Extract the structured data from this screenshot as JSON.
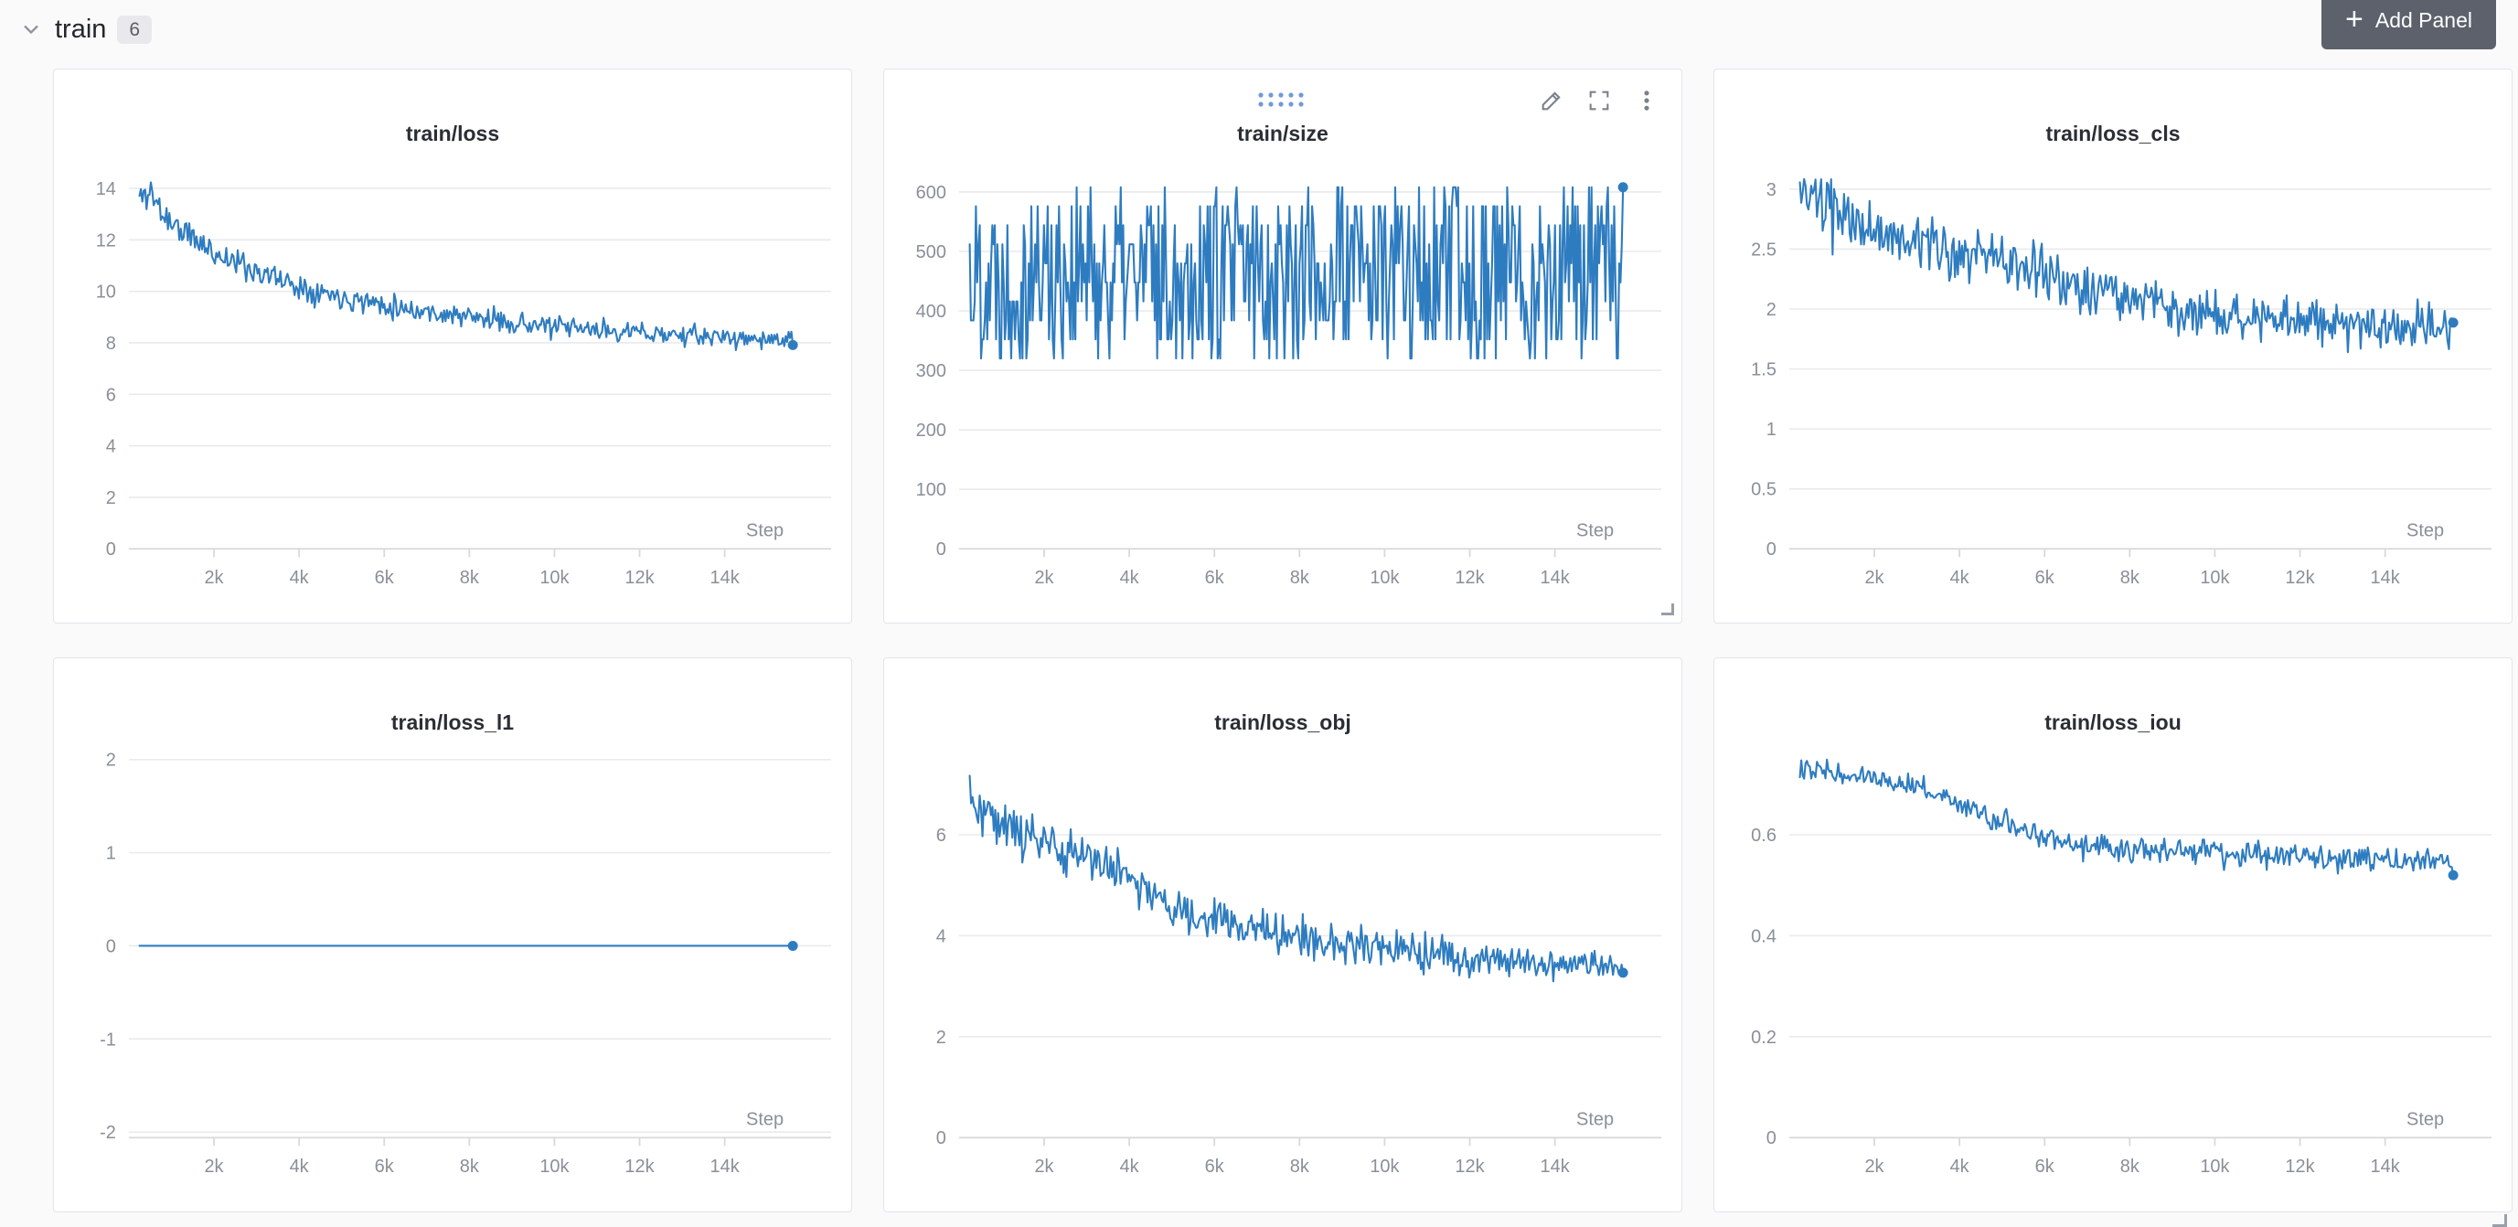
{
  "header": {
    "section_title": "train",
    "section_count": "6",
    "add_panel_label": "Add Panel",
    "plus_glyph": "+"
  },
  "style": {
    "line_color": "#2e7cc0",
    "grid_color": "#e9eaed",
    "axis_color": "#d7d9dd",
    "tick_label_color": "#8a8f98",
    "title_color": "#2b2e35",
    "dot_color": "#6f9bd6"
  },
  "axis": {
    "xlabel": "Step",
    "x_ticks": [
      [
        2000,
        "2k"
      ],
      [
        4000,
        "4k"
      ],
      [
        6000,
        "6k"
      ],
      [
        8000,
        "8k"
      ],
      [
        10000,
        "10k"
      ],
      [
        12000,
        "12k"
      ],
      [
        14000,
        "14k"
      ]
    ]
  },
  "chart_data": [
    {
      "title": "train/loss",
      "type": "line",
      "seed": 11,
      "points": 460,
      "x_start": 250,
      "x_end": 15600,
      "xmax": 16500,
      "ylim": [
        0,
        14.9
      ],
      "y_ticks": [
        0,
        2,
        4,
        6,
        8,
        10,
        12,
        14
      ],
      "trend": [
        [
          250,
          13.6
        ],
        [
          500,
          13.9
        ],
        [
          800,
          13.0
        ],
        [
          1200,
          12.4
        ],
        [
          2000,
          11.5
        ],
        [
          3000,
          10.8
        ],
        [
          4000,
          10.2
        ],
        [
          5000,
          9.8
        ],
        [
          6000,
          9.5
        ],
        [
          7000,
          9.2
        ],
        [
          8000,
          9.0
        ],
        [
          9000,
          8.8
        ],
        [
          10000,
          8.6
        ],
        [
          11000,
          8.5
        ],
        [
          12000,
          8.4
        ],
        [
          13000,
          8.3
        ],
        [
          14000,
          8.2
        ],
        [
          15600,
          8.1
        ]
      ],
      "noise": [
        [
          250,
          0.75
        ],
        [
          3000,
          0.55
        ],
        [
          8000,
          0.45
        ],
        [
          15600,
          0.38
        ]
      ],
      "end_dot": true,
      "hover_controls": false
    },
    {
      "title": "train/size",
      "type": "line",
      "seed": 22,
      "points": 520,
      "x_start": 250,
      "x_end": 15600,
      "xmax": 16500,
      "ylim": [
        0,
        645
      ],
      "y_ticks": [
        0,
        100,
        200,
        300,
        400,
        500,
        600
      ],
      "trend": [
        [
          250,
          464
        ],
        [
          15600,
          464
        ]
      ],
      "noise": 150,
      "noise_type": "uniform",
      "quantize": 32,
      "quantize_min": 320,
      "quantize_max": 608,
      "end_value": 608,
      "end_dot": true,
      "hover_controls": true
    },
    {
      "title": "train/loss_cls",
      "type": "line",
      "seed": 33,
      "points": 460,
      "x_start": 250,
      "x_end": 15600,
      "xmax": 16500,
      "ylim": [
        0,
        3.2
      ],
      "y_ticks": [
        0,
        0.5,
        1,
        1.5,
        2,
        2.5,
        3
      ],
      "trend": [
        [
          250,
          2.95
        ],
        [
          1000,
          2.8
        ],
        [
          2000,
          2.65
        ],
        [
          3000,
          2.55
        ],
        [
          4000,
          2.45
        ],
        [
          5000,
          2.38
        ],
        [
          6000,
          2.28
        ],
        [
          7000,
          2.18
        ],
        [
          8000,
          2.1
        ],
        [
          9000,
          2.0
        ],
        [
          10000,
          1.95
        ],
        [
          11000,
          1.92
        ],
        [
          12000,
          1.9
        ],
        [
          13000,
          1.88
        ],
        [
          14000,
          1.86
        ],
        [
          15600,
          1.85
        ]
      ],
      "noise": [
        [
          250,
          0.28
        ],
        [
          4000,
          0.24
        ],
        [
          15600,
          0.2
        ]
      ],
      "end_dot": true,
      "hover_controls": false
    },
    {
      "title": "train/loss_l1",
      "type": "line",
      "seed": 44,
      "points": 460,
      "x_start": 250,
      "x_end": 15600,
      "xmax": 16500,
      "ylim": [
        -2.06,
        2.06
      ],
      "y_ticks": [
        -2,
        -1,
        0,
        1,
        2
      ],
      "trend": [
        [
          250,
          0
        ],
        [
          15600,
          0
        ]
      ],
      "noise": 0,
      "end_dot": true,
      "hover_controls": false
    },
    {
      "title": "train/loss_obj",
      "type": "line",
      "seed": 55,
      "points": 460,
      "x_start": 250,
      "x_end": 15600,
      "xmax": 16500,
      "ylim": [
        0,
        7.6
      ],
      "y_ticks": [
        0,
        2,
        4,
        6
      ],
      "trend": [
        [
          250,
          6.9
        ],
        [
          700,
          6.4
        ],
        [
          1500,
          6.0
        ],
        [
          2500,
          5.7
        ],
        [
          3500,
          5.4
        ],
        [
          4200,
          5.1
        ],
        [
          5000,
          4.5
        ],
        [
          6000,
          4.3
        ],
        [
          7000,
          4.15
        ],
        [
          8000,
          3.95
        ],
        [
          9000,
          3.85
        ],
        [
          10000,
          3.75
        ],
        [
          11000,
          3.65
        ],
        [
          12000,
          3.55
        ],
        [
          13000,
          3.5
        ],
        [
          14000,
          3.45
        ],
        [
          15600,
          3.4
        ]
      ],
      "noise": [
        [
          250,
          0.55
        ],
        [
          5000,
          0.45
        ],
        [
          15600,
          0.3
        ]
      ],
      "end_dot": true,
      "hover_controls": false
    },
    {
      "title": "train/loss_iou",
      "type": "line",
      "seed": 66,
      "points": 460,
      "x_start": 250,
      "x_end": 15600,
      "xmax": 16500,
      "ylim": [
        0,
        0.76
      ],
      "y_ticks": [
        0,
        0.2,
        0.4,
        0.6
      ],
      "trend": [
        [
          250,
          0.735
        ],
        [
          1500,
          0.72
        ],
        [
          2500,
          0.705
        ],
        [
          3000,
          0.695
        ],
        [
          4000,
          0.665
        ],
        [
          4500,
          0.645
        ],
        [
          5000,
          0.625
        ],
        [
          5500,
          0.605
        ],
        [
          6000,
          0.59
        ],
        [
          7000,
          0.578
        ],
        [
          8000,
          0.572
        ],
        [
          9000,
          0.57
        ],
        [
          10000,
          0.565
        ],
        [
          11000,
          0.56
        ],
        [
          12000,
          0.556
        ],
        [
          13000,
          0.552
        ],
        [
          14000,
          0.55
        ],
        [
          15600,
          0.545
        ]
      ],
      "noise": [
        [
          250,
          0.02
        ],
        [
          8000,
          0.028
        ],
        [
          15600,
          0.03
        ]
      ],
      "end_dot": true,
      "hover_controls": false
    }
  ]
}
